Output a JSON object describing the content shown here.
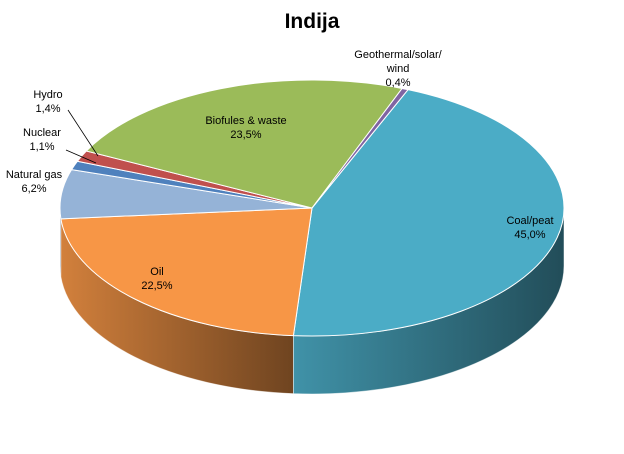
{
  "chart_data": {
    "type": "pie",
    "title": "Indija",
    "slices": [
      {
        "name": "Coal/peat",
        "value_label": "45,0%",
        "value": 45.0,
        "color": "#4bacc6"
      },
      {
        "name": "Oil",
        "value_label": "22,5%",
        "value": 22.5,
        "color": "#f79646"
      },
      {
        "name": "Natural gas",
        "value_label": "6,2%",
        "value": 6.2,
        "color": "#95b3d7"
      },
      {
        "name": "Nuclear",
        "value_label": "1,1%",
        "value": 1.1,
        "color": "#4f81bd"
      },
      {
        "name": "Hydro",
        "value_label": "1,4%",
        "value": 1.4,
        "color": "#c0504d"
      },
      {
        "name": "Biofules & waste",
        "value_label": "23,5%",
        "value": 23.5,
        "color": "#9bbb59"
      },
      {
        "name": "Geothermal/solar/\nwind",
        "value_label": "0,4%",
        "value": 0.4,
        "color": "#8064a2"
      }
    ]
  }
}
